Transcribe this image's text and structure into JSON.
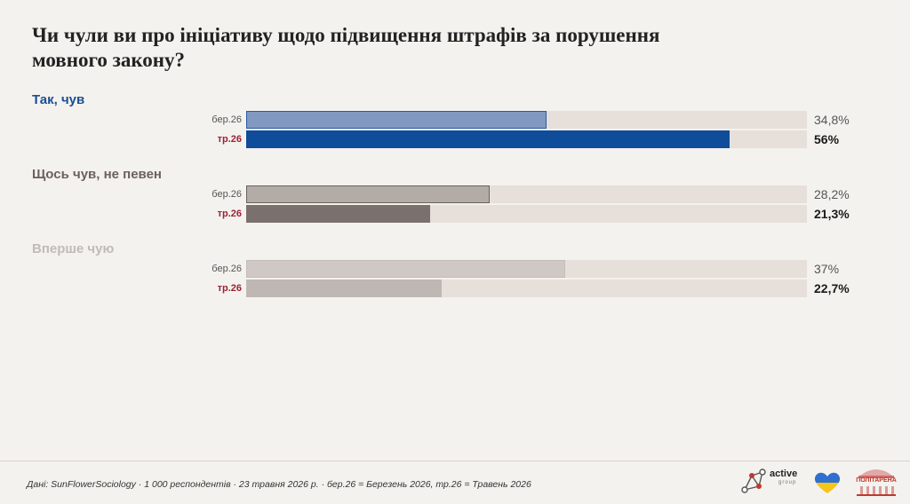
{
  "title": "Чи чули ви про ініціативу щодо підвищення штрафів за порушення мовного закону?",
  "chart_data": {
    "type": "bar",
    "orientation": "horizontal",
    "title": "Чи чули ви про ініціативу щодо підвищення штрафів за порушення мовного закону?",
    "xlim": [
      0,
      65
    ],
    "period_labels": {
      "prev": "бер.26",
      "curr": "тр.26"
    },
    "groups": [
      {
        "label": "Так, чув",
        "label_color": "#1b4f93",
        "prev": {
          "value": 34.8,
          "display": "34,8%",
          "color": "#8199c0",
          "border": "#2a5aa4"
        },
        "curr": {
          "value": 56,
          "display": "56%",
          "color": "#0f4c99",
          "border": ""
        }
      },
      {
        "label": "Щось чув, не певен",
        "label_color": "#6b6060",
        "prev": {
          "value": 28.2,
          "display": "28,2%",
          "color": "#b3aba6",
          "border": "#6a625f"
        },
        "curr": {
          "value": 21.3,
          "display": "21,3%",
          "color": "#7a706d",
          "border": ""
        }
      },
      {
        "label": "Вперше чую",
        "label_color": "#c1bbb6",
        "prev": {
          "value": 37,
          "display": "37%",
          "color": "#d0c8c4",
          "border": "#c4bcb8"
        },
        "curr": {
          "value": 22.7,
          "display": "22,7%",
          "color": "#bfb7b3",
          "border": ""
        }
      }
    ]
  },
  "footer": {
    "source": "Дані: SunFlowerSociology · 1 000 респондентів · 23 травня 2026 р. · бер.26 = Березень 2026, тр.26 = Травень 2026",
    "logo_active": "active",
    "logo_active_sub": "group",
    "logo_polit": "ПОЛІТАРЕНА"
  }
}
